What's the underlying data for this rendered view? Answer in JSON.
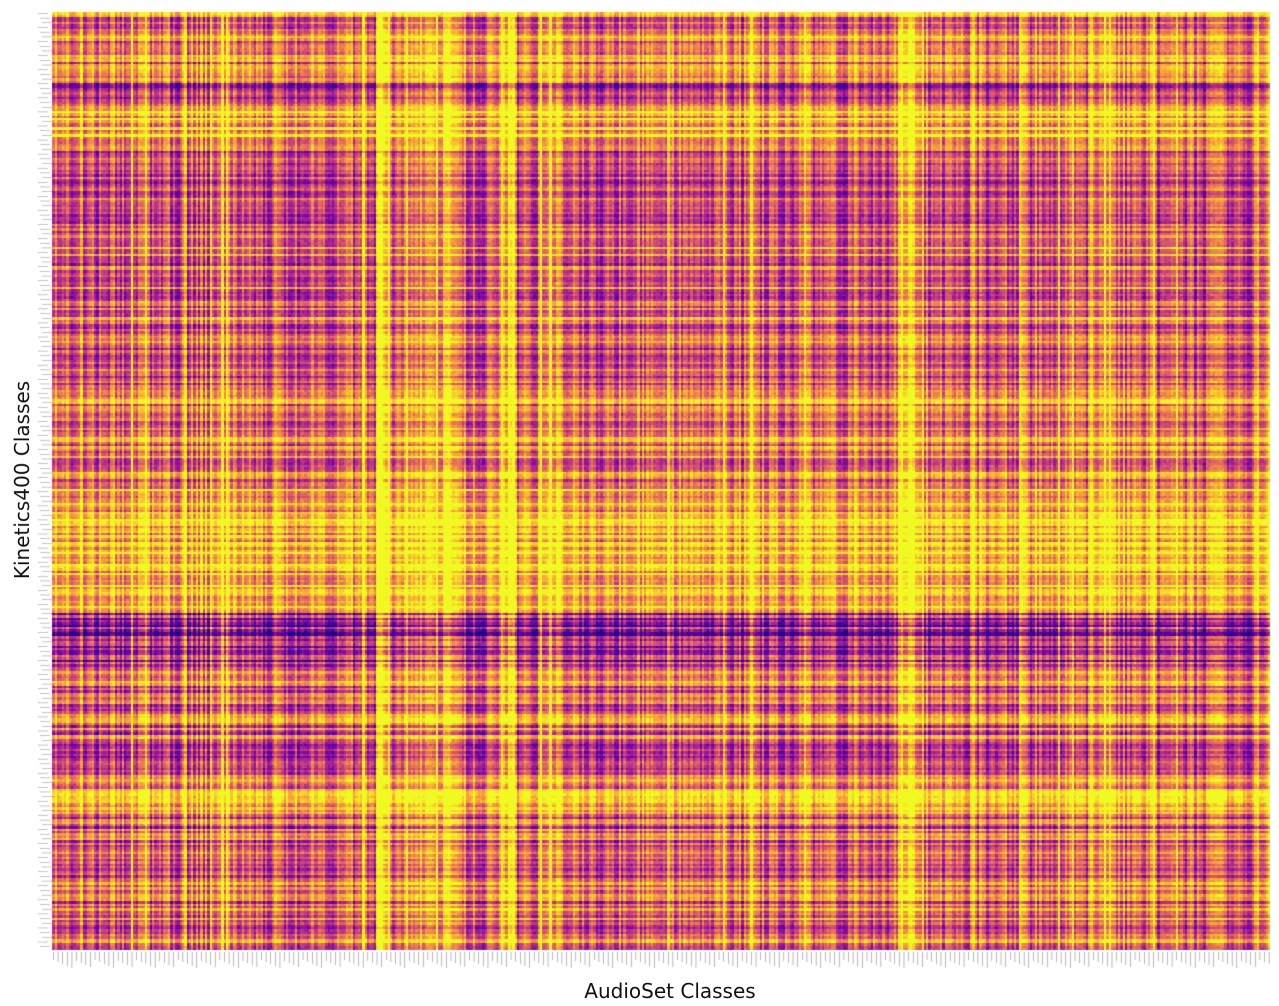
{
  "chart_data": {
    "type": "heatmap",
    "colormap": "plasma",
    "colormap_stops": [
      "#0d0887",
      "#6a00a8",
      "#b12a90",
      "#e16462",
      "#fca636",
      "#f0f921"
    ],
    "value_range": [
      0,
      1
    ],
    "xlabel": "AudioSet Classes",
    "ylabel": "Kinetics400 Classes",
    "n_columns": 527,
    "n_rows": 400,
    "row_bands": [
      {
        "rows": [
          0,
          29
        ],
        "mean": 0.66
      },
      {
        "rows": [
          30,
          34
        ],
        "mean": 0.3
      },
      {
        "rows": [
          35,
          39
        ],
        "mean": 0.62
      },
      {
        "rows": [
          40,
          55
        ],
        "mean": 0.86
      },
      {
        "rows": [
          56,
          74
        ],
        "mean": 0.5
      },
      {
        "rows": [
          75,
          159
        ],
        "mean": 0.6
      },
      {
        "rows": [
          160,
          199
        ],
        "mean": 0.7
      },
      {
        "rows": [
          200,
          255
        ],
        "mean": 0.85
      },
      {
        "rows": [
          256,
          279
        ],
        "mean": 0.36
      },
      {
        "rows": [
          280,
          305
        ],
        "mean": 0.64
      },
      {
        "rows": [
          306,
          325
        ],
        "mean": 0.54
      },
      {
        "rows": [
          326,
          339
        ],
        "mean": 0.72
      },
      {
        "rows": [
          340,
          399
        ],
        "mean": 0.58
      }
    ],
    "bright_column_blocks": [
      {
        "columns": [
          140,
          145
        ],
        "boost": 0.3
      },
      {
        "columns": [
          152,
          175
        ],
        "boost": 0.2
      },
      {
        "columns": [
          194,
          200
        ],
        "boost": 0.3
      },
      {
        "columns": [
          210,
          220
        ],
        "boost": 0.18
      },
      {
        "columns": [
          366,
          374
        ],
        "boost": 0.28
      },
      {
        "columns": [
          448,
          458
        ],
        "boost": 0.15
      },
      {
        "columns": [
          520,
          526
        ],
        "boost": 0.12
      }
    ]
  }
}
